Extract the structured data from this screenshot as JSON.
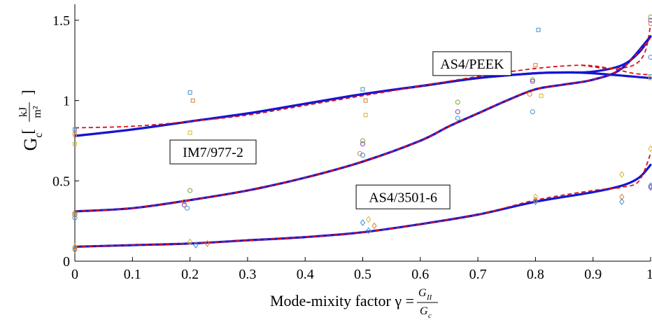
{
  "chart_data": {
    "type": "line",
    "xlabel": "Mode-mixity factor γ =",
    "xlabel_frac_num": "G",
    "xlabel_frac_num_sub": "II",
    "xlabel_frac_den": "G",
    "xlabel_frac_den_sub": "c",
    "ylabel": "G",
    "ylabel_sub": "c",
    "yunit_num": "kJ",
    "yunit_den": "m²",
    "xlim": [
      0,
      1
    ],
    "ylim": [
      0,
      1.6
    ],
    "xticks": [
      0,
      0.1,
      0.2,
      0.3,
      0.4,
      0.5,
      0.6,
      0.7,
      0.8,
      0.9,
      1
    ],
    "xtick_labels": [
      "0",
      "0.1",
      "0.2",
      "0.3",
      "0.4",
      "0.5",
      "0.6",
      "0.7",
      "0.8",
      "0.9",
      "1"
    ],
    "yticks": [
      0,
      0.5,
      1,
      1.5
    ],
    "ytick_labels": [
      "0",
      "0.5",
      "1",
      "1.5"
    ],
    "grid": false,
    "colors": {
      "fit_solid": "#1515d4",
      "fit_dashed": "#dd1111",
      "data_blue": "#3a8fd9",
      "data_orange": "#e07a30",
      "data_yellow": "#d8b52a",
      "data_purple": "#8a3fb0",
      "data_green": "#6aa832"
    },
    "series": [
      {
        "name": "AS4/PEEK",
        "label_at": [
          0.69,
          1.23
        ],
        "marker": "square",
        "solid": [
          [
            0,
            0.78
          ],
          [
            0.1,
            0.82
          ],
          [
            0.2,
            0.87
          ],
          [
            0.3,
            0.92
          ],
          [
            0.4,
            0.98
          ],
          [
            0.5,
            1.04
          ],
          [
            0.6,
            1.09
          ],
          [
            0.7,
            1.14
          ],
          [
            0.8,
            1.17
          ],
          [
            0.85,
            1.175
          ],
          [
            0.9,
            1.17
          ],
          [
            1,
            1.14
          ]
        ],
        "solid2": [
          [
            0,
            0.78
          ],
          [
            0.1,
            0.82
          ],
          [
            0.2,
            0.87
          ],
          [
            0.3,
            0.92
          ],
          [
            0.4,
            0.98
          ],
          [
            0.5,
            1.04
          ],
          [
            0.6,
            1.09
          ],
          [
            0.7,
            1.14
          ],
          [
            0.8,
            1.17
          ],
          [
            0.85,
            1.175
          ],
          [
            0.9,
            1.18
          ],
          [
            0.95,
            1.22
          ],
          [
            0.98,
            1.3
          ],
          [
            1,
            1.4
          ]
        ],
        "dashed": [
          [
            0,
            0.83
          ],
          [
            0.1,
            0.84
          ],
          [
            0.2,
            0.87
          ],
          [
            0.3,
            0.91
          ],
          [
            0.4,
            0.97
          ],
          [
            0.5,
            1.03
          ],
          [
            0.6,
            1.09
          ],
          [
            0.7,
            1.15
          ],
          [
            0.8,
            1.2
          ],
          [
            0.88,
            1.22
          ],
          [
            0.93,
            1.2
          ],
          [
            0.97,
            1.17
          ],
          [
            1,
            1.16
          ]
        ],
        "dashed2": [
          [
            0.88,
            1.22
          ],
          [
            0.93,
            1.2
          ],
          [
            0.97,
            1.22
          ],
          [
            0.99,
            1.3
          ],
          [
            1,
            1.47
          ]
        ],
        "points": [
          {
            "x": 0,
            "y": 0.82,
            "c": "data_blue"
          },
          {
            "x": 0,
            "y": 0.79,
            "c": "data_orange"
          },
          {
            "x": 0,
            "y": 0.73,
            "c": "data_yellow"
          },
          {
            "x": 0.2,
            "y": 1.05,
            "c": "data_blue"
          },
          {
            "x": 0.205,
            "y": 1.0,
            "c": "data_orange"
          },
          {
            "x": 0.2,
            "y": 0.8,
            "c": "data_yellow"
          },
          {
            "x": 0.5,
            "y": 1.07,
            "c": "data_blue"
          },
          {
            "x": 0.505,
            "y": 1.0,
            "c": "data_orange"
          },
          {
            "x": 0.505,
            "y": 0.91,
            "c": "data_yellow"
          },
          {
            "x": 0.805,
            "y": 1.44,
            "c": "data_blue"
          },
          {
            "x": 0.8,
            "y": 1.22,
            "c": "data_orange"
          },
          {
            "x": 0.81,
            "y": 1.03,
            "c": "data_yellow"
          },
          {
            "x": 1,
            "y": 1.15,
            "c": "data_blue"
          },
          {
            "x": 1,
            "y": 1.14,
            "c": "data_orange"
          },
          {
            "x": 1,
            "y": 1.14,
            "c": "data_yellow"
          }
        ]
      },
      {
        "name": "IM7/977-2",
        "label_at": [
          0.24,
          0.68
        ],
        "marker": "circle",
        "solid": [
          [
            0,
            0.31
          ],
          [
            0.1,
            0.33
          ],
          [
            0.2,
            0.38
          ],
          [
            0.3,
            0.44
          ],
          [
            0.4,
            0.52
          ],
          [
            0.5,
            0.62
          ],
          [
            0.6,
            0.75
          ],
          [
            0.65,
            0.84
          ],
          [
            0.7,
            0.92
          ],
          [
            0.75,
            1.0
          ],
          [
            0.8,
            1.07
          ],
          [
            0.85,
            1.1
          ],
          [
            0.9,
            1.13
          ],
          [
            0.95,
            1.2
          ],
          [
            1,
            1.4
          ]
        ],
        "dashed": [
          [
            0,
            0.31
          ],
          [
            0.1,
            0.33
          ],
          [
            0.2,
            0.38
          ],
          [
            0.3,
            0.44
          ],
          [
            0.4,
            0.52
          ],
          [
            0.5,
            0.62
          ],
          [
            0.6,
            0.75
          ],
          [
            0.65,
            0.84
          ],
          [
            0.7,
            0.92
          ],
          [
            0.75,
            1.0
          ],
          [
            0.8,
            1.07
          ],
          [
            0.85,
            1.1
          ],
          [
            0.9,
            1.13
          ],
          [
            0.95,
            1.2
          ],
          [
            1,
            1.39
          ]
        ],
        "points": [
          {
            "x": 0,
            "y": 0.3,
            "c": "data_green"
          },
          {
            "x": 0,
            "y": 0.29,
            "c": "data_purple"
          },
          {
            "x": 0,
            "y": 0.27,
            "c": "data_blue"
          },
          {
            "x": 0,
            "y": 0.29,
            "c": "data_orange"
          },
          {
            "x": 0.2,
            "y": 0.44,
            "c": "data_green"
          },
          {
            "x": 0.19,
            "y": 0.37,
            "c": "data_orange"
          },
          {
            "x": 0.19,
            "y": 0.35,
            "c": "data_purple"
          },
          {
            "x": 0.195,
            "y": 0.33,
            "c": "data_blue"
          },
          {
            "x": 0.5,
            "y": 0.75,
            "c": "data_green"
          },
          {
            "x": 0.5,
            "y": 0.73,
            "c": "data_purple"
          },
          {
            "x": 0.495,
            "y": 0.67,
            "c": "data_orange"
          },
          {
            "x": 0.5,
            "y": 0.66,
            "c": "data_blue"
          },
          {
            "x": 0.665,
            "y": 0.99,
            "c": "data_green"
          },
          {
            "x": 0.665,
            "y": 0.93,
            "c": "data_purple"
          },
          {
            "x": 0.665,
            "y": 0.89,
            "c": "data_blue"
          },
          {
            "x": 0.795,
            "y": 1.13,
            "c": "data_green"
          },
          {
            "x": 0.795,
            "y": 1.12,
            "c": "data_purple"
          },
          {
            "x": 0.79,
            "y": 1.04,
            "c": "data_orange"
          },
          {
            "x": 0.795,
            "y": 0.93,
            "c": "data_blue"
          },
          {
            "x": 1,
            "y": 1.52,
            "c": "data_green"
          },
          {
            "x": 1,
            "y": 1.5,
            "c": "data_purple"
          },
          {
            "x": 1,
            "y": 1.48,
            "c": "data_orange"
          },
          {
            "x": 1,
            "y": 1.27,
            "c": "data_blue"
          }
        ]
      },
      {
        "name": "AS4/3501-6",
        "label_at": [
          0.57,
          0.4
        ],
        "marker": "diamond",
        "solid": [
          [
            0,
            0.09
          ],
          [
            0.1,
            0.1
          ],
          [
            0.2,
            0.11
          ],
          [
            0.3,
            0.13
          ],
          [
            0.4,
            0.15
          ],
          [
            0.5,
            0.18
          ],
          [
            0.6,
            0.23
          ],
          [
            0.7,
            0.29
          ],
          [
            0.8,
            0.37
          ],
          [
            0.9,
            0.43
          ],
          [
            0.95,
            0.47
          ],
          [
            0.98,
            0.52
          ],
          [
            1,
            0.6
          ]
        ],
        "dashed": [
          [
            0,
            0.09
          ],
          [
            0.1,
            0.1
          ],
          [
            0.2,
            0.11
          ],
          [
            0.3,
            0.13
          ],
          [
            0.4,
            0.15
          ],
          [
            0.5,
            0.18
          ],
          [
            0.6,
            0.23
          ],
          [
            0.7,
            0.29
          ],
          [
            0.8,
            0.38
          ],
          [
            0.9,
            0.44
          ],
          [
            0.95,
            0.46
          ],
          [
            0.98,
            0.5
          ],
          [
            1,
            0.67
          ]
        ],
        "points": [
          {
            "x": 0,
            "y": 0.09,
            "c": "data_yellow"
          },
          {
            "x": 0,
            "y": 0.08,
            "c": "data_blue"
          },
          {
            "x": 0,
            "y": 0.07,
            "c": "data_orange"
          },
          {
            "x": 0.2,
            "y": 0.12,
            "c": "data_yellow"
          },
          {
            "x": 0.21,
            "y": 0.1,
            "c": "data_blue"
          },
          {
            "x": 0.23,
            "y": 0.11,
            "c": "data_orange"
          },
          {
            "x": 0.51,
            "y": 0.26,
            "c": "data_yellow"
          },
          {
            "x": 0.5,
            "y": 0.24,
            "c": "data_blue"
          },
          {
            "x": 0.52,
            "y": 0.22,
            "c": "data_orange"
          },
          {
            "x": 0.51,
            "y": 0.19,
            "c": "data_blue"
          },
          {
            "x": 0.8,
            "y": 0.4,
            "c": "data_yellow"
          },
          {
            "x": 0.8,
            "y": 0.38,
            "c": "data_orange"
          },
          {
            "x": 0.8,
            "y": 0.37,
            "c": "data_blue"
          },
          {
            "x": 0.95,
            "y": 0.54,
            "c": "data_yellow"
          },
          {
            "x": 0.95,
            "y": 0.4,
            "c": "data_orange"
          },
          {
            "x": 0.95,
            "y": 0.37,
            "c": "data_blue"
          },
          {
            "x": 1,
            "y": 0.7,
            "c": "data_yellow"
          },
          {
            "x": 1,
            "y": 0.47,
            "c": "data_blue"
          },
          {
            "x": 1,
            "y": 0.46,
            "c": "data_purple"
          }
        ]
      }
    ]
  }
}
